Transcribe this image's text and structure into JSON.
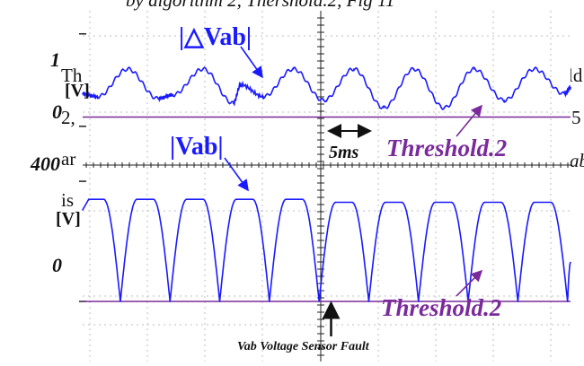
{
  "page_text": {
    "top_clip": "by algorithm 2, Thershold.2, Fig 11",
    "line1_left": "Th",
    "line1_right": "ld",
    "line2_left": "2,",
    "line2_right": "5",
    "line3_left": "ar",
    "line3_right": "ab",
    "line4_left": "is"
  },
  "colors": {
    "signal": "#1a1aff",
    "threshold": "#7a2a9a",
    "grid": "#bfbfbf",
    "axis": "#222222"
  },
  "chart_data": [
    {
      "type": "line",
      "title": "|△Vab|",
      "ylabel": "[V]",
      "ytick_labels": [
        "1",
        "0"
      ],
      "ylim": [
        -0.4,
        1.25
      ],
      "xlabel": "",
      "time_division_label": "5ms",
      "x_unit": "ms",
      "xlim": [
        0,
        54
      ],
      "grid": true,
      "series": [
        {
          "name": "|△Vab|",
          "x": [
            0,
            1.67,
            5,
            8.33,
            10,
            13.33,
            16.67,
            17.5,
            20,
            23.33,
            26.67,
            30,
            33.33,
            36.67,
            40,
            43.33,
            46.67,
            50,
            53.33,
            54
          ],
          "y": [
            0.35,
            0.32,
            0.62,
            0.3,
            0.34,
            0.62,
            0.25,
            0.45,
            0.32,
            0.62,
            0.28,
            0.62,
            0.2,
            0.62,
            0.2,
            0.62,
            0.28,
            0.62,
            0.35,
            0.42
          ]
        }
      ],
      "threshold": {
        "label": "Threshold.2",
        "value": 0.1
      }
    },
    {
      "type": "line",
      "title": "|Vab|",
      "ylabel": "[V]",
      "ytick_labels": [
        "400",
        "0"
      ],
      "ylim": [
        -200,
        460
      ],
      "xlabel": "",
      "xlim": [
        0,
        54
      ],
      "grid": true,
      "series": [
        {
          "name": "|Vab|",
          "x": [
            0,
            0.67,
            2.33,
            4.17,
            6.0,
            7.83,
            9.67,
            11.5,
            13.33,
            15.17,
            17.0,
            18.83,
            20.67,
            22.5,
            24.33,
            26.17,
            28.0,
            29.83,
            31.67,
            33.5,
            35.33,
            37.17,
            39.0,
            40.83,
            42.67,
            44.5,
            46.33,
            48.17,
            50.0,
            51.83,
            53.67,
            54
          ],
          "y": [
            305,
            340,
            340,
            0,
            340,
            340,
            0,
            340,
            340,
            0,
            340,
            340,
            0,
            340,
            340,
            0,
            330,
            330,
            0,
            330,
            330,
            0,
            330,
            330,
            0,
            330,
            330,
            0,
            330,
            330,
            0,
            130
          ]
        }
      ],
      "threshold": {
        "label": "Threshold.2",
        "value": 0
      }
    }
  ],
  "annotation": {
    "fault_label": "Vab Voltage Sensor Fault",
    "fault_time": 27.5
  }
}
